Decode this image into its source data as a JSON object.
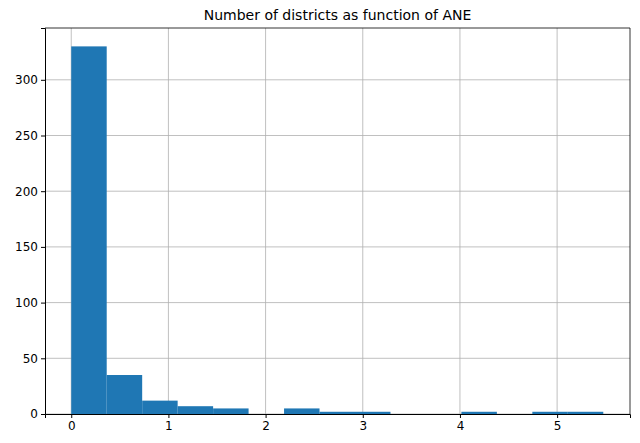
{
  "chart_data": {
    "type": "histogram",
    "title": "Number of districts as function of ANE",
    "bins": [
      0,
      0.365,
      0.73,
      1.095,
      1.46,
      1.825,
      2.19,
      2.555,
      2.92,
      3.285,
      3.65,
      4.015,
      4.38,
      4.745,
      5.11,
      5.475
    ],
    "values": [
      330,
      35,
      12,
      7,
      5,
      0,
      5,
      2,
      2,
      0,
      0,
      2,
      0,
      2,
      2
    ],
    "color": "#1f77b4",
    "xlim": [
      -0.27,
      5.75
    ],
    "xticks": [
      0,
      1,
      2,
      3,
      4,
      5
    ],
    "ylim": [
      0,
      346.5
    ],
    "yticks": [
      0,
      50,
      100,
      150,
      200,
      250,
      300
    ],
    "grid": true
  }
}
